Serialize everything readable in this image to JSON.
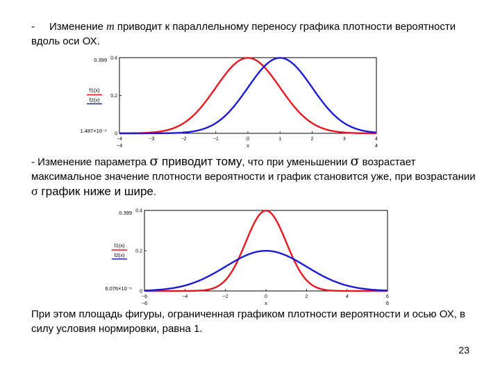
{
  "paragraph1": {
    "dash": "-",
    "before_m": "Изменение ",
    "m": "m",
    "after_m": " приводит к параллельному переносу графика плотности вероятности вдоль оси ОХ."
  },
  "paragraph2": {
    "part1": "- Изменение параметра ",
    "sigma1": "σ",
    "part2": " приводит тому",
    "part3": ", что при уменьшении ",
    "sigma2": "σ",
    "part4": " возрастает максимальное значение плотности вероятности и график становится уже, при возрастании ",
    "sigma3": "σ",
    "part5": " график ниже и шире",
    "part6": "."
  },
  "paragraph3": "При этом площадь фигуры, ограниченная графиком плотности вероятности и осью ОХ, в силу условия нормировки, равна 1.",
  "page_number": "23",
  "colors": {
    "f1": "#e8141e",
    "f2": "#1a1ad6"
  },
  "chart_data": [
    {
      "type": "line",
      "xlim": [
        -4,
        4
      ],
      "ylim_labels": {
        "top": "0.399",
        "bottom": "1.487×10⁻⁶"
      },
      "x_ticks": [
        "−4",
        "−3",
        "−2",
        "−1",
        "0",
        "1",
        "2",
        "3",
        "4"
      ],
      "x_range_labels": {
        "left": "−4",
        "right": "4"
      },
      "y_ticks": [
        "0",
        "0.2",
        "0.4"
      ],
      "xlabel": "x",
      "legend": [
        "f1(x)",
        "f2(x)"
      ],
      "series": [
        {
          "name": "f1(x)",
          "mean": 0,
          "sigma": 1
        },
        {
          "name": "f2(x)",
          "mean": 1,
          "sigma": 1
        }
      ]
    },
    {
      "type": "line",
      "xlim": [
        -6,
        6
      ],
      "ylim_labels": {
        "top": "0.399",
        "bottom": "6.076×10⁻⁹"
      },
      "x_ticks": [
        "−6",
        "−4",
        "−2",
        "0",
        "2",
        "4",
        "6"
      ],
      "x_range_labels": {
        "left": "−6",
        "right": "6"
      },
      "y_ticks": [
        "0",
        "0.2",
        "0.4"
      ],
      "xlabel": "x",
      "legend": [
        "f1(x)",
        "f2(x)"
      ],
      "series": [
        {
          "name": "f1(x)",
          "mean": 0,
          "sigma": 1
        },
        {
          "name": "f2(x)",
          "mean": 0,
          "sigma": 2
        }
      ]
    }
  ]
}
